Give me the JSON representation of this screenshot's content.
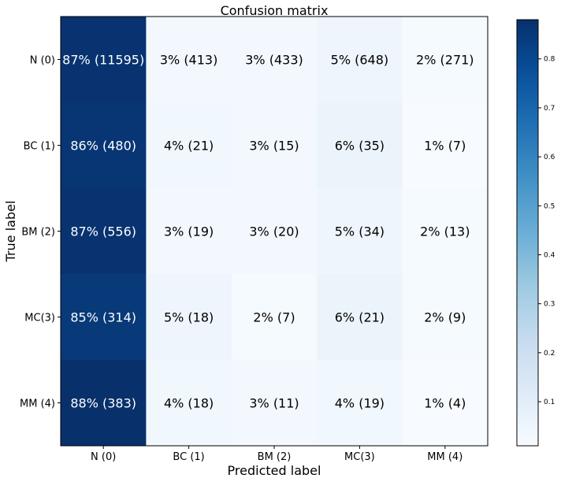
{
  "chart_data": {
    "type": "heatmap",
    "title": "Confusion matrix",
    "xlabel": "Predicted label",
    "ylabel": "True label",
    "x_categories": [
      "N (0)",
      "BC (1)",
      "BM (2)",
      "MC(3)",
      "MM (4)"
    ],
    "y_categories": [
      "N (0)",
      "BC (1)",
      "BM (2)",
      "MC(3)",
      "MM (4)"
    ],
    "counts": [
      [
        11595,
        413,
        433,
        648,
        271
      ],
      [
        480,
        21,
        15,
        35,
        7
      ],
      [
        556,
        19,
        20,
        34,
        13
      ],
      [
        314,
        18,
        7,
        21,
        9
      ],
      [
        383,
        18,
        11,
        19,
        4
      ]
    ],
    "values": [
      [
        0.87,
        0.03,
        0.03,
        0.05,
        0.02
      ],
      [
        0.86,
        0.04,
        0.03,
        0.06,
        0.01
      ],
      [
        0.87,
        0.03,
        0.03,
        0.05,
        0.02
      ],
      [
        0.85,
        0.05,
        0.02,
        0.06,
        0.02
      ],
      [
        0.88,
        0.04,
        0.03,
        0.04,
        0.01
      ]
    ],
    "cell_labels": [
      [
        "87%  (11595)",
        "3%  (413)",
        "3%  (433)",
        "5%  (648)",
        "2%  (271)"
      ],
      [
        "86%  (480)",
        "4%  (21)",
        "3%  (15)",
        "6%  (35)",
        "1%  (7)"
      ],
      [
        "87%  (556)",
        "3%  (19)",
        "3%  (20)",
        "5%  (34)",
        "2%  (13)"
      ],
      [
        "85%  (314)",
        "5%  (18)",
        "2%  (7)",
        "6%  (21)",
        "2%  (9)"
      ],
      [
        "88%  (383)",
        "4%  (18)",
        "3%  (11)",
        "4%  (19)",
        "1%  (4)"
      ]
    ],
    "colormap": "Blues",
    "colorbar": {
      "range": [
        0.01,
        0.88
      ],
      "ticks": [
        0.1,
        0.2,
        0.3,
        0.4,
        0.5,
        0.6,
        0.7,
        0.8
      ],
      "tick_labels": [
        "0.1",
        "0.2",
        "0.3",
        "0.4",
        "0.5",
        "0.6",
        "0.7",
        "0.8"
      ],
      "placement": "right"
    },
    "grid": false
  }
}
